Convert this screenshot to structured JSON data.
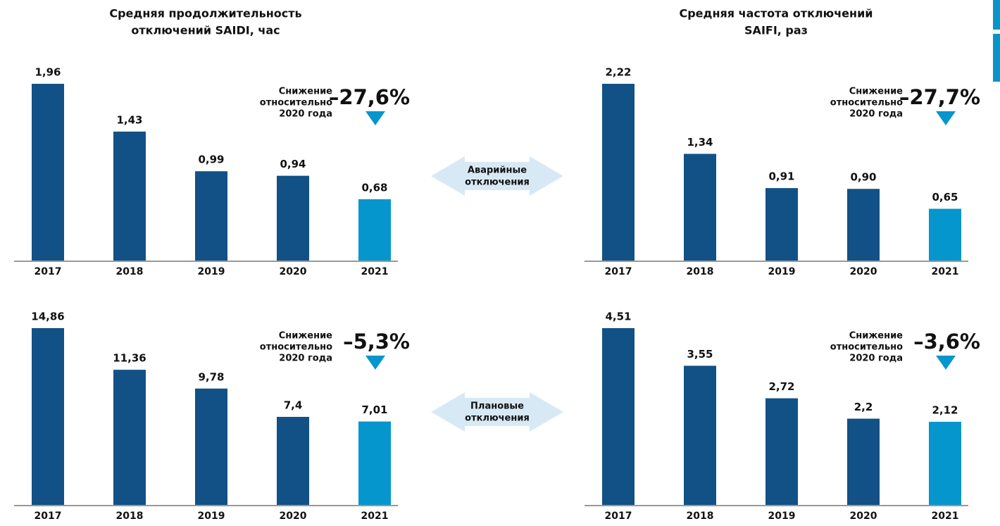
{
  "chart_data": [
    {
      "type": "bar",
      "title": [
        "Средняя продолжительность",
        "отключений SAIDI, час"
      ],
      "categories": [
        "2017",
        "2018",
        "2019",
        "2020",
        "2021"
      ],
      "values": [
        1.96,
        1.43,
        0.99,
        0.94,
        0.68
      ],
      "value_labels": [
        "1,96",
        "1,43",
        "0,99",
        "0,94",
        "0,68"
      ],
      "colors": [
        "#115186",
        "#115186",
        "#115186",
        "#115186",
        "#0596cd"
      ],
      "annotation": [
        "Снижение",
        "относительно",
        "2020 года"
      ],
      "change": "–27,6%"
    },
    {
      "type": "bar",
      "title": [
        "Средняя частота отключений",
        "SAIFI, раз"
      ],
      "categories": [
        "2017",
        "2018",
        "2019",
        "2020",
        "2021"
      ],
      "values": [
        2.22,
        1.34,
        0.91,
        0.9,
        0.65
      ],
      "value_labels": [
        "2,22",
        "1,34",
        "0,91",
        "0,90",
        "0,65"
      ],
      "colors": [
        "#115186",
        "#115186",
        "#115186",
        "#115186",
        "#0596cd"
      ],
      "annotation": [
        "Снижение",
        "относительно",
        "2020 года"
      ],
      "change": "–27,7%"
    },
    {
      "type": "bar",
      "categories": [
        "2017",
        "2018",
        "2019",
        "2020",
        "2021"
      ],
      "values": [
        14.86,
        11.36,
        9.78,
        7.4,
        7.01
      ],
      "value_labels": [
        "14,86",
        "11,36",
        "9,78",
        "7,4",
        "7,01"
      ],
      "colors": [
        "#115186",
        "#115186",
        "#115186",
        "#115186",
        "#0596cd"
      ],
      "annotation": [
        "Снижение",
        "относительно",
        "2020 года"
      ],
      "change": "–5,3%"
    },
    {
      "type": "bar",
      "categories": [
        "2017",
        "2018",
        "2019",
        "2020",
        "2021"
      ],
      "values": [
        4.51,
        3.55,
        2.72,
        2.2,
        2.12
      ],
      "value_labels": [
        "4,51",
        "3,55",
        "2,72",
        "2,2",
        "2,12"
      ],
      "colors": [
        "#115186",
        "#115186",
        "#115186",
        "#115186",
        "#0596cd"
      ],
      "annotation": [
        "Снижение",
        "относительно",
        "2020 года"
      ],
      "change": "–3,6%"
    }
  ],
  "row_labels": [
    [
      "Аварийные",
      "отключения"
    ],
    [
      "Плановые",
      "отключения"
    ]
  ]
}
